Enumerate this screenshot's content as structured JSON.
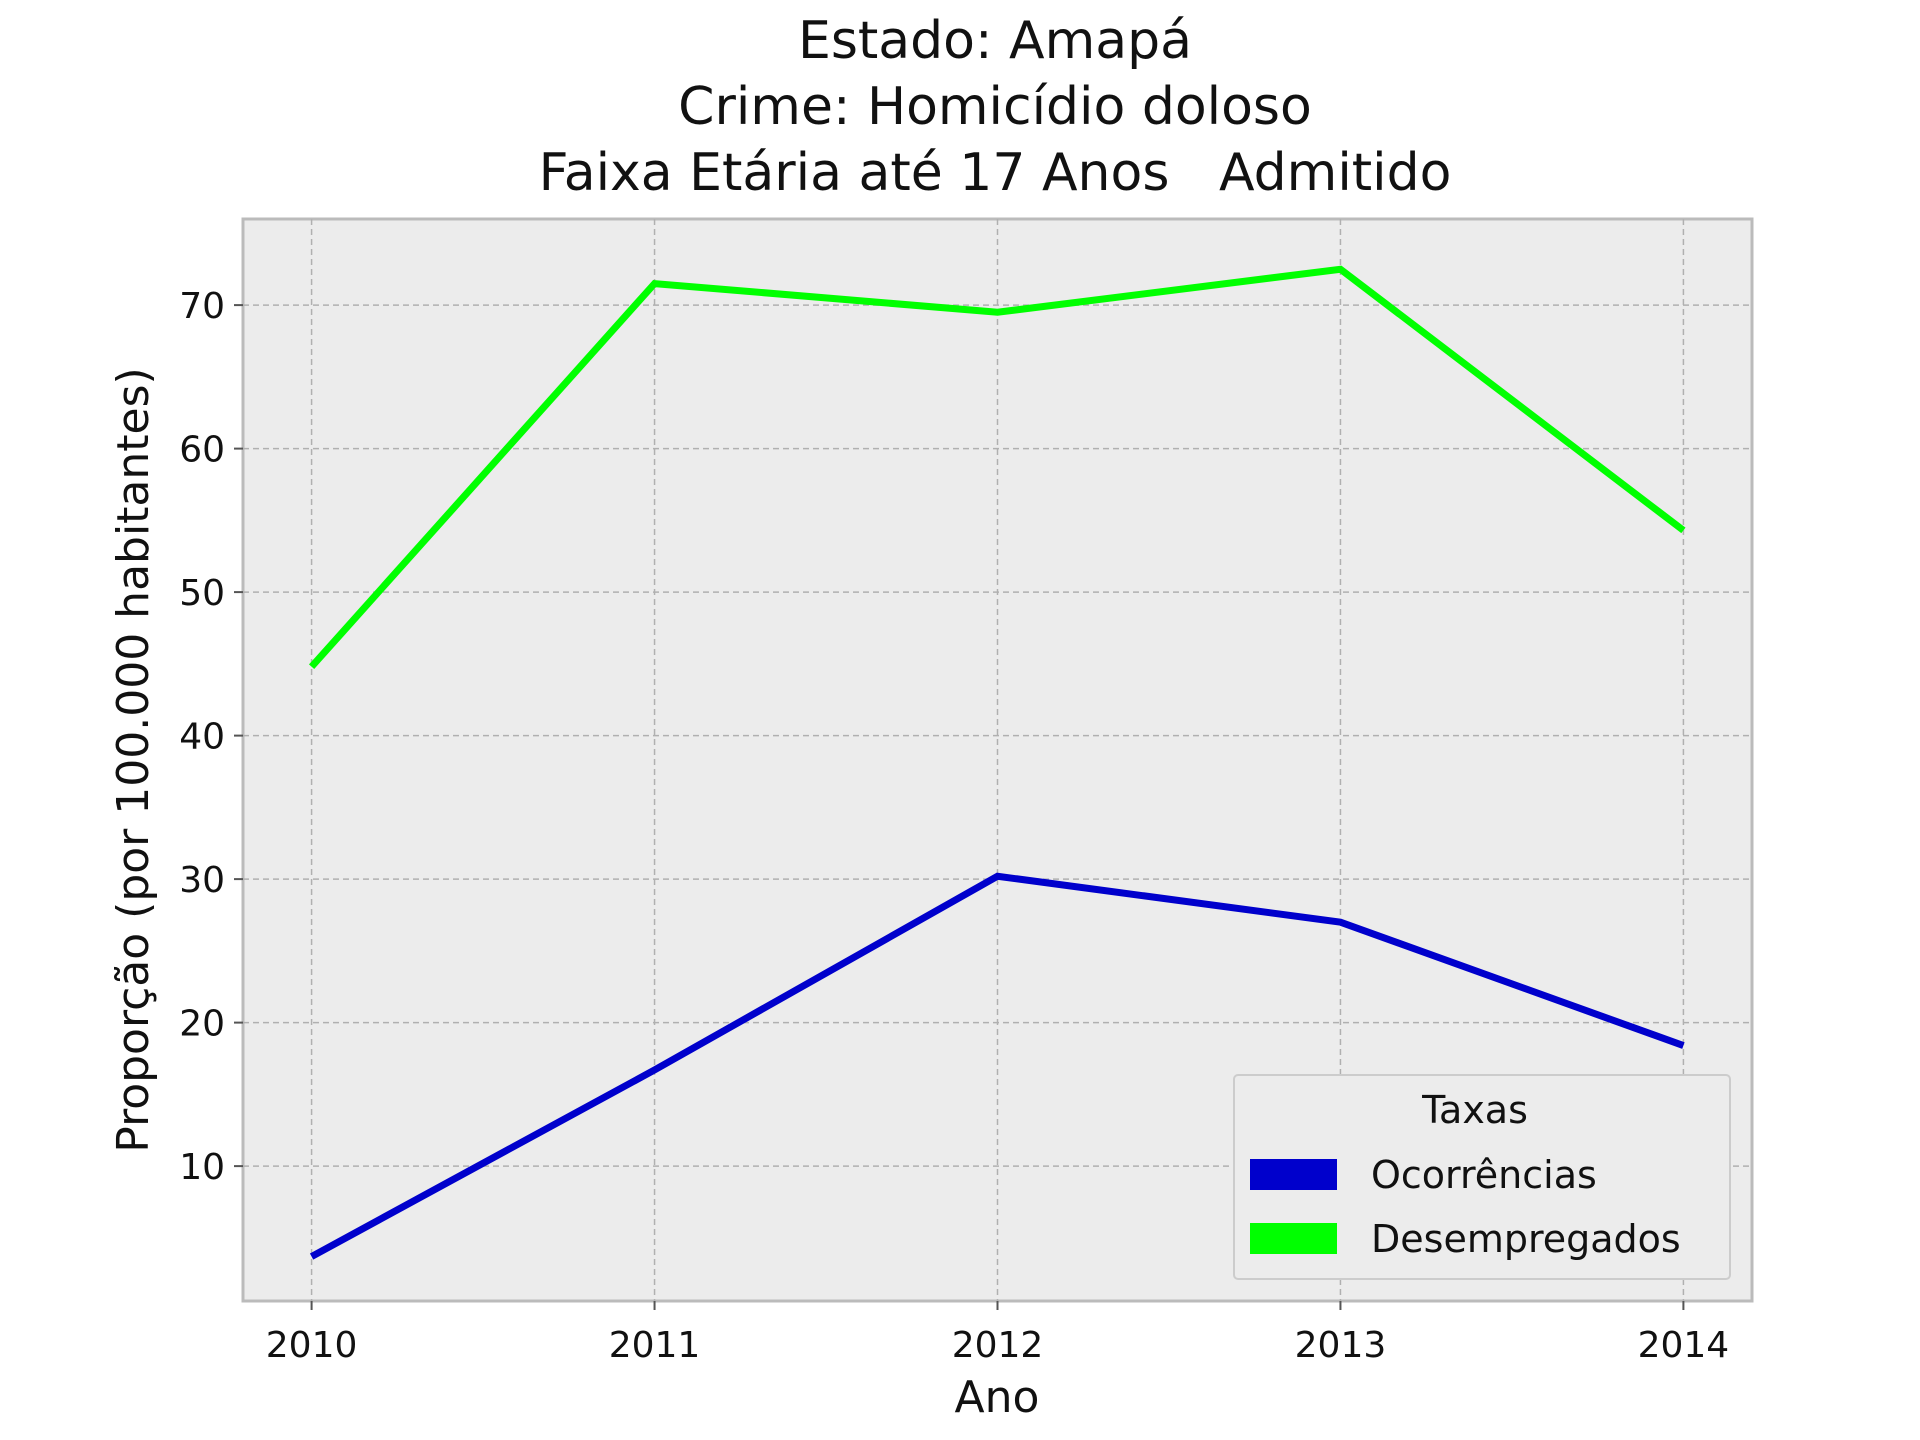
{
  "chart_data": {
    "type": "line",
    "title": [
      "Estado: Amapá",
      "Crime: Homicídio doloso",
      "Faixa Etária até 17 Anos   Admitido"
    ],
    "xlabel": "Ano",
    "ylabel": "Proporção (por 100.000 habitantes)",
    "x": [
      2010,
      2011,
      2012,
      2013,
      2014
    ],
    "x_tick_labels": [
      "2010",
      "2011",
      "2012",
      "2013",
      "2014"
    ],
    "y_ticks": [
      10,
      20,
      30,
      40,
      50,
      60,
      70
    ],
    "y_tick_labels": [
      "10",
      "20",
      "30",
      "40",
      "50",
      "60",
      "70"
    ],
    "xlim": [
      2009.8,
      2014.2
    ],
    "ylim": [
      0.6,
      76.0
    ],
    "grid": true,
    "legend": {
      "title": "Taxas",
      "placement": "bottom-right"
    },
    "series": [
      {
        "name": "Ocorrências",
        "color": "#0000cc",
        "values": [
          3.7,
          16.7,
          30.2,
          27.0,
          18.4
        ]
      },
      {
        "name": "Desempregados",
        "color": "#00ff00",
        "values": [
          44.8,
          71.5,
          69.5,
          72.5,
          54.3
        ]
      }
    ],
    "colors": {
      "plot_background": "#ececec",
      "frame": "#bbbbbb",
      "grid": "#b0b0b0"
    }
  }
}
